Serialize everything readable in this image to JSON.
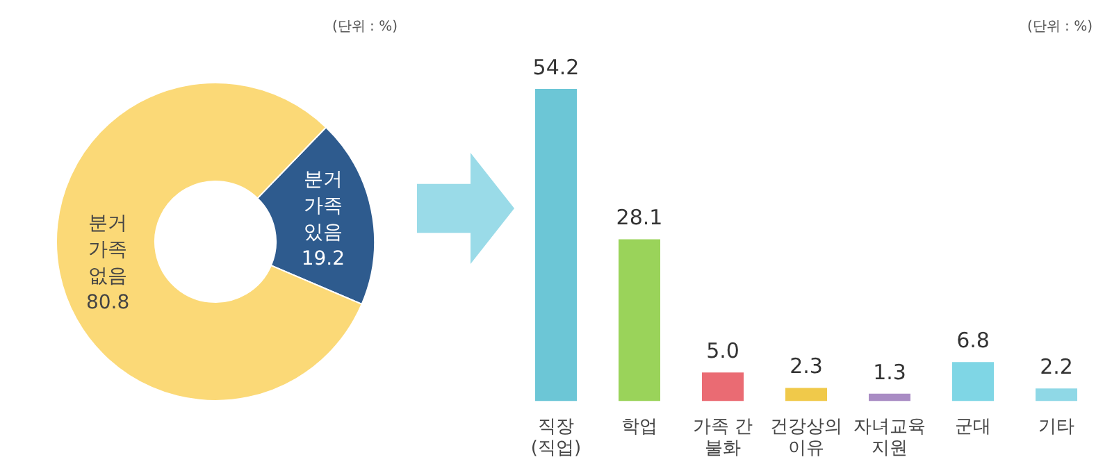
{
  "chart_data": [
    {
      "type": "donut",
      "categories": [
        "분거\n가족\n있음",
        "분거\n가족\n없음"
      ],
      "values": [
        19.2,
        80.8
      ],
      "colors": [
        "#2e5b8e",
        "#fbd977"
      ],
      "data_labels": true,
      "annotations": [
        "(단위 : %)"
      ]
    },
    {
      "type": "bar",
      "categories": [
        "직장\n(직업)",
        "학업",
        "가족 간\n불화",
        "건강상의\n이유",
        "자녀교육\n지원",
        "군대",
        "기타"
      ],
      "values": [
        54.2,
        28.1,
        5.0,
        2.3,
        1.3,
        6.8,
        2.2
      ],
      "colors": [
        "#6cc6d6",
        "#9ad35a",
        "#ea6b73",
        "#f0c94a",
        "#a98cc4",
        "#7fd6e5",
        "#8fd8e6"
      ],
      "value_labels": [
        "54.2",
        "28.1",
        "5.0",
        "2.3",
        "1.3",
        "6.8",
        "2.2"
      ],
      "annotations": [
        "(단위 : %)"
      ]
    }
  ]
}
